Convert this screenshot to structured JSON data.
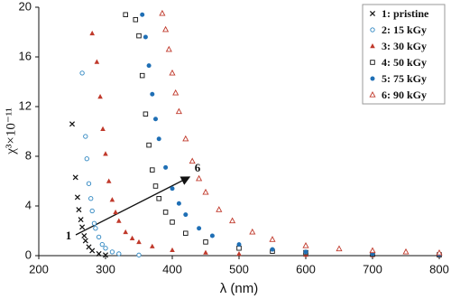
{
  "chart_data": {
    "type": "scatter",
    "x_label": "λ (nm)",
    "y_label": "χ³×10⁻¹¹",
    "xlim": [
      200,
      800
    ],
    "xticks": [
      200,
      300,
      400,
      500,
      600,
      700,
      800
    ],
    "ylim": [
      0,
      20
    ],
    "yticks": [
      0,
      4,
      8,
      12,
      16,
      20
    ],
    "legend": "upper right",
    "annotations": [
      "1",
      "6"
    ],
    "series": [
      {
        "name": "1: pristine",
        "color": "#111111",
        "marker": "x",
        "x": [
          250,
          255,
          258,
          260,
          263,
          265,
          268,
          270,
          275,
          280,
          290,
          300
        ],
        "values": [
          10.6,
          6.3,
          4.7,
          3.7,
          2.9,
          2.3,
          1.6,
          1.2,
          0.7,
          0.4,
          0.15,
          0.05
        ]
      },
      {
        "name": "2: 15 kGy",
        "color": "#2e86c1",
        "marker": "circle-open",
        "x": [
          265,
          270,
          272,
          275,
          278,
          280,
          283,
          285,
          290,
          295,
          300,
          310,
          320,
          350
        ],
        "values": [
          14.7,
          9.6,
          7.8,
          5.8,
          4.6,
          3.6,
          2.6,
          2.2,
          1.5,
          0.9,
          0.6,
          0.3,
          0.15,
          0.05
        ]
      },
      {
        "name": "3: 30 kGy",
        "color": "#c0392b",
        "marker": "triangle",
        "x": [
          280,
          287,
          292,
          296,
          300,
          305,
          310,
          315,
          320,
          330,
          340,
          350,
          370,
          400,
          450,
          500,
          600,
          700,
          800
        ],
        "values": [
          17.9,
          15.6,
          12.8,
          10.2,
          8.2,
          6.0,
          4.5,
          3.5,
          2.8,
          1.9,
          1.4,
          1.1,
          0.75,
          0.45,
          0.25,
          0.15,
          0.07,
          0.04,
          0.02
        ]
      },
      {
        "name": "4: 50 kGy",
        "color": "#111111",
        "marker": "square-open",
        "x": [
          330,
          345,
          350,
          355,
          360,
          365,
          370,
          375,
          380,
          390,
          400,
          420,
          450,
          500,
          550,
          600,
          700,
          800
        ],
        "values": [
          19.4,
          19.0,
          17.7,
          14.5,
          11.4,
          8.9,
          6.9,
          5.6,
          4.6,
          3.5,
          2.7,
          1.8,
          1.1,
          0.6,
          0.35,
          0.25,
          0.12,
          0.07
        ]
      },
      {
        "name": "5: 75 kGy",
        "color": "#1f6fb5",
        "marker": "circle",
        "x": [
          355,
          360,
          365,
          370,
          375,
          380,
          390,
          400,
          410,
          420,
          440,
          460,
          500,
          550,
          600,
          700,
          800
        ],
        "values": [
          19.4,
          17.6,
          15.3,
          13.0,
          11.0,
          9.4,
          7.1,
          5.4,
          4.2,
          3.3,
          2.2,
          1.6,
          0.9,
          0.5,
          0.3,
          0.15,
          0.08
        ]
      },
      {
        "name": "6: 90 kGy",
        "color": "#c0392b",
        "marker": "triangle-open",
        "x": [
          385,
          390,
          395,
          400,
          405,
          410,
          420,
          430,
          440,
          450,
          470,
          490,
          520,
          550,
          600,
          650,
          700,
          750,
          800
        ],
        "values": [
          19.5,
          18.2,
          16.6,
          14.7,
          13.1,
          11.6,
          9.4,
          7.6,
          6.2,
          5.1,
          3.7,
          2.8,
          1.9,
          1.3,
          0.8,
          0.55,
          0.4,
          0.3,
          0.22
        ]
      }
    ]
  }
}
